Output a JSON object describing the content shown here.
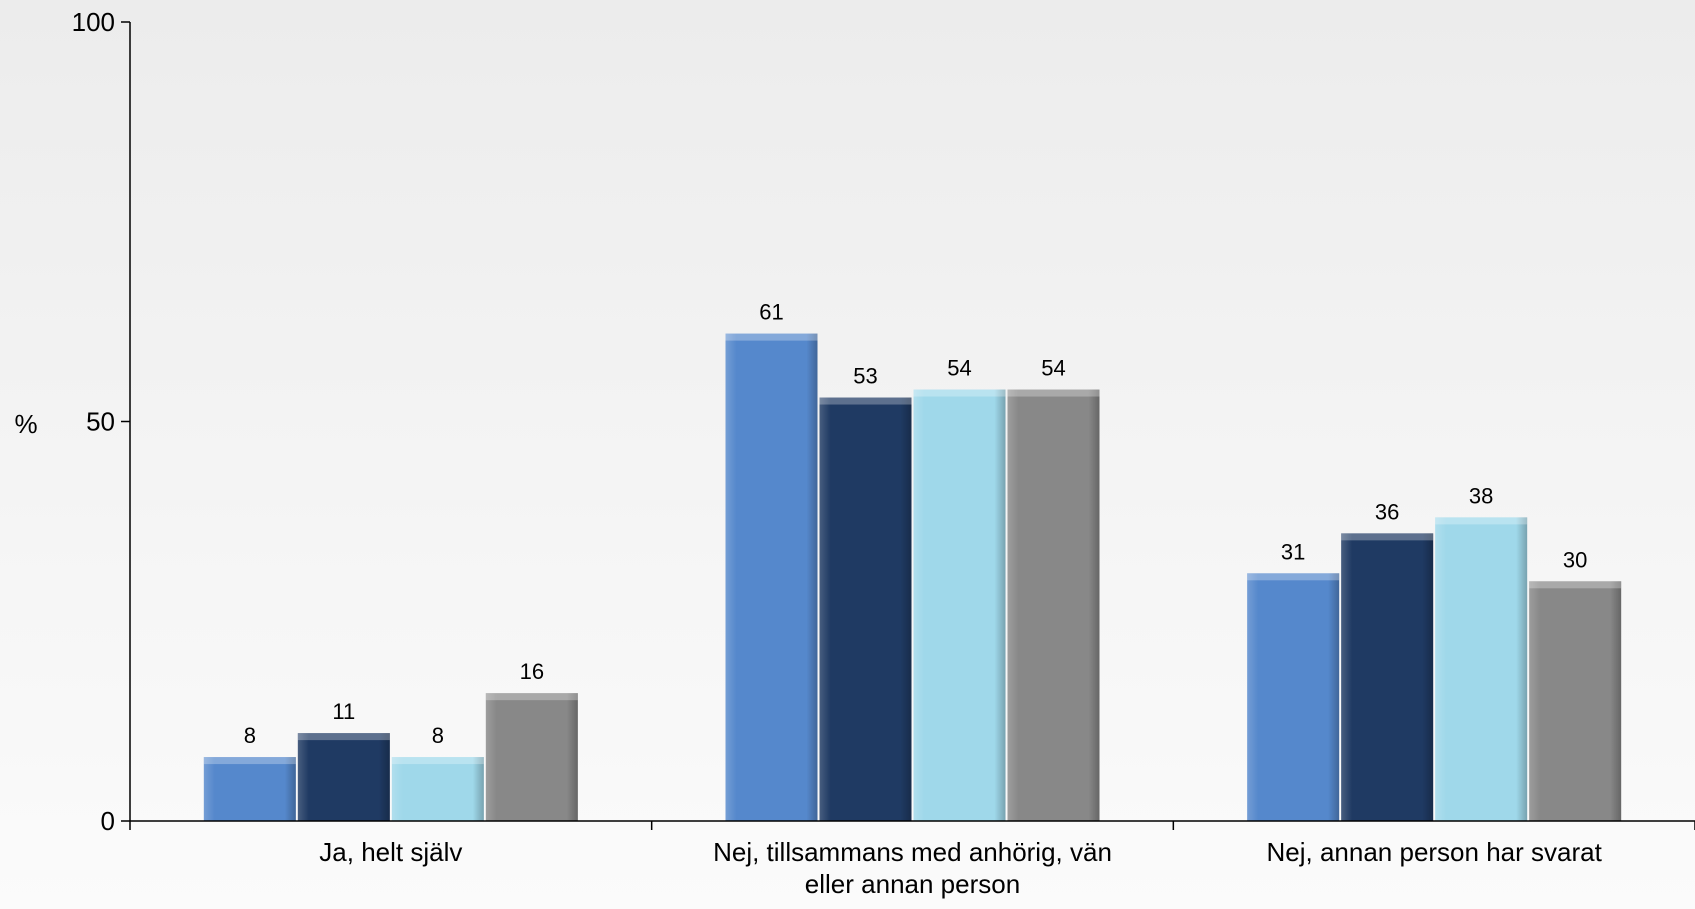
{
  "chart_data": {
    "type": "bar",
    "categories": [
      [
        "Ja, helt själv"
      ],
      [
        "Nej, tillsammans med anhörig, vän",
        "eller annan person"
      ],
      [
        "Nej, annan person har svarat"
      ]
    ],
    "series": [
      {
        "values": [
          8,
          61,
          31
        ],
        "color": "#5588cc"
      },
      {
        "values": [
          11,
          53,
          36
        ],
        "color": "#1f3a63"
      },
      {
        "values": [
          8,
          54,
          38
        ],
        "color": "#9fd8ea"
      },
      {
        "values": [
          16,
          54,
          30
        ],
        "color": "#888888"
      }
    ],
    "ylabel": "%",
    "ylim": [
      0,
      100
    ],
    "yticks": [
      0,
      50,
      100
    ],
    "grid": false,
    "data_labels": true
  }
}
